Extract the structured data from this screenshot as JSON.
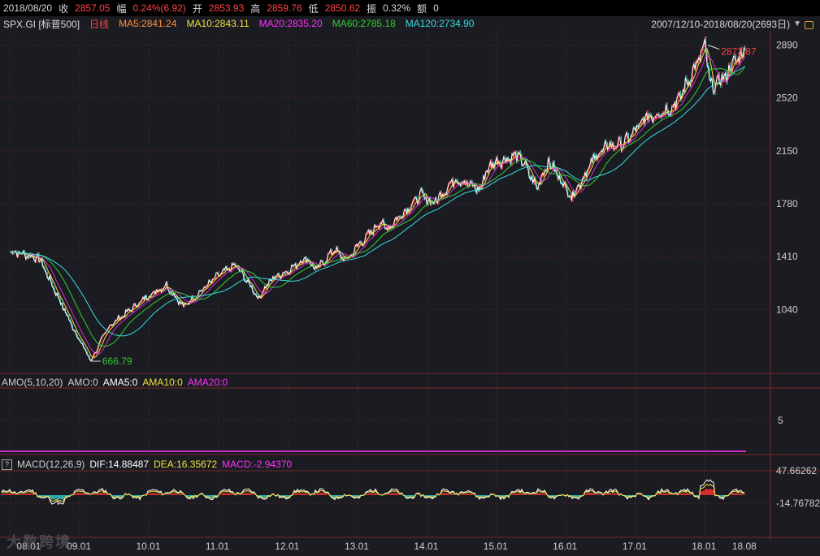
{
  "header": {
    "date": "2018/08/20",
    "close_label": "收",
    "close_value": "2857.05",
    "change_label": "幅",
    "change_value": "0.24%(6.92)",
    "open_label": "开",
    "open_value": "2853.93",
    "high_label": "高",
    "high_value": "2859.76",
    "low_label": "低",
    "low_value": "2850.62",
    "amp_label": "振",
    "amp_value": "0.32%",
    "amount_label": "额",
    "amount_value": "0"
  },
  "ma_bar": {
    "symbol": "SPX.GI [标普500]",
    "period": "日线",
    "ma5": "MA5:2841.24",
    "ma10": "MA10:2843.11",
    "ma20": "MA20:2835.20",
    "ma60": "MA60:2785.18",
    "ma120": "MA120:2734.90",
    "range": "2007/12/10-2018/08/20(2693日)"
  },
  "amo_bar": {
    "title": "AMO(5,10,20)",
    "amo": "AMO:0",
    "ama5": "AMA5:0",
    "ama10": "AMA10:0",
    "ama20": "AMA20:0"
  },
  "macd_bar": {
    "title": "MACD(12,26,9)",
    "dif": "DIF:14.88487",
    "dea": "DEA:16.35672",
    "macd": "MACD:-2.94370",
    "help": "?"
  },
  "colors": {
    "up": "#ff3333",
    "down": "#33cccc",
    "ma5": "#ffffff",
    "ma10": "#f0e040",
    "ma20": "#ff30ff",
    "ma60": "#33cc33",
    "ma120": "#33dddd",
    "grid": "#5a2a2a"
  },
  "watermark": "大数跨境",
  "chart_data": [
    {
      "type": "line",
      "title": "SPX.GI [标普500] 日线",
      "x": [
        "2008-01",
        "2008-06",
        "2008-12",
        "2009-03",
        "2009-06",
        "2010-01",
        "2010-04",
        "2010-07",
        "2011-01",
        "2011-04",
        "2011-08",
        "2011-10",
        "2012-01",
        "2012-04",
        "2012-06",
        "2012-09",
        "2012-11",
        "2013-01",
        "2013-05",
        "2013-06",
        "2013-12",
        "2014-02",
        "2014-06",
        "2014-10",
        "2014-12",
        "2015-05",
        "2015-08",
        "2015-10",
        "2016-02",
        "2016-06",
        "2016-08",
        "2016-11",
        "2017-03",
        "2017-08",
        "2018-01",
        "2018-02",
        "2018-04",
        "2018-06",
        "2018-08"
      ],
      "series": [
        {
          "name": "收",
          "values": [
            1450,
            1400,
            900,
            680,
            920,
            1140,
            1210,
            1060,
            1280,
            1350,
            1120,
            1250,
            1310,
            1400,
            1320,
            1460,
            1380,
            1480,
            1650,
            1600,
            1840,
            1780,
            1960,
            1880,
            2060,
            2120,
            1890,
            2080,
            1830,
            2100,
            2180,
            2200,
            2380,
            2470,
            2870,
            2600,
            2640,
            2760,
            2857
          ]
        }
      ],
      "y_ticks": [
        2890,
        2520,
        2150,
        1780,
        1410,
        1040
      ],
      "x_ticks": [
        "08.01",
        "09.01",
        "10.01",
        "11.01",
        "12.01",
        "13.01",
        "14.01",
        "15.01",
        "16.01",
        "17.01",
        "18.01",
        "18.08"
      ],
      "annotations": [
        {
          "text": "2872.87"
        },
        {
          "text": "666.79"
        }
      ]
    },
    {
      "type": "line",
      "title": "AMO(5,10,20)",
      "y_ticks": [
        5
      ],
      "series": [
        {
          "name": "AMA20:0",
          "values": [
            0
          ]
        }
      ]
    },
    {
      "type": "bar",
      "title": "MACD(12,26,9)",
      "y_ticks": [
        47.66262,
        -14.76782
      ],
      "y_tick_labels": [
        "47.66262",
        "-14.76782"
      ]
    }
  ]
}
